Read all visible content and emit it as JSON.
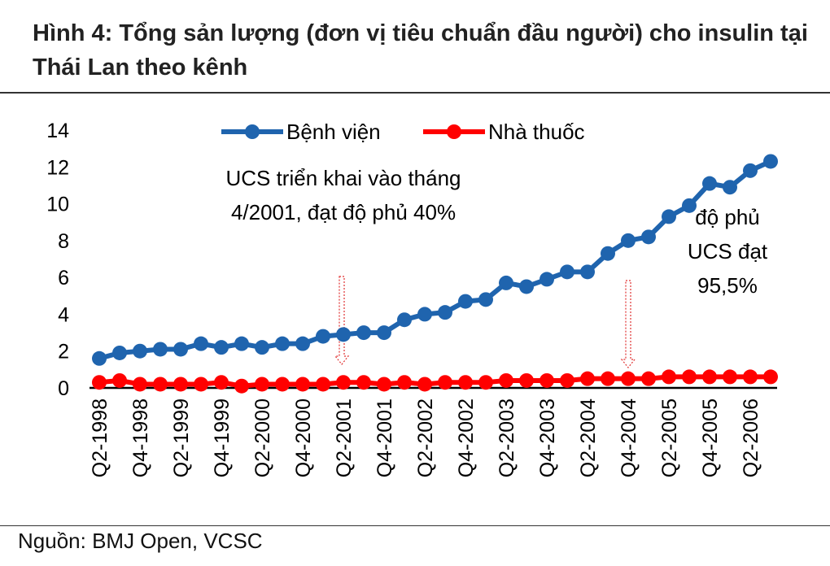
{
  "title": "Hình 4: Tổng sản lượng (đơn vị tiêu chuẩn đầu người) cho insulin tại Thái Lan theo kênh",
  "source": "Nguồn: BMJ Open, VCSC",
  "colors": {
    "hospital": "#1F64AE",
    "pharmacy": "#FF0000"
  },
  "chart_data": {
    "type": "line",
    "title": "Hình 4: Tổng sản lượng (đơn vị tiêu chuẩn đầu người) cho insulin tại Thái Lan theo kênh",
    "ylim": [
      0,
      14
    ],
    "yticks": [
      "0",
      "2",
      "4",
      "6",
      "8",
      "10",
      "12",
      "14"
    ],
    "xtick_labels": [
      "Q2-1998",
      "Q4-1998",
      "Q2-1999",
      "Q4-1999",
      "Q2-2000",
      "Q4-2000",
      "Q2-2001",
      "Q4-2001",
      "Q2-2002",
      "Q4-2002",
      "Q2-2003",
      "Q4-2003",
      "Q2-2004",
      "Q4-2004",
      "Q2-2005",
      "Q4-2005",
      "Q2-2006"
    ],
    "x": [
      "Q2-1998",
      "Q3-1998",
      "Q4-1998",
      "Q1-1999",
      "Q2-1999",
      "Q3-1999",
      "Q4-1999",
      "Q1-2000",
      "Q2-2000",
      "Q3-2000",
      "Q4-2000",
      "Q1-2001",
      "Q2-2001",
      "Q3-2001",
      "Q4-2001",
      "Q1-2002",
      "Q2-2002",
      "Q3-2002",
      "Q4-2002",
      "Q1-2003",
      "Q2-2003",
      "Q3-2003",
      "Q4-2003",
      "Q1-2004",
      "Q2-2004",
      "Q3-2004",
      "Q4-2004",
      "Q1-2005",
      "Q2-2005",
      "Q3-2005",
      "Q4-2005",
      "Q1-2006",
      "Q2-2006",
      "Q3-2006"
    ],
    "series": [
      {
        "name": "Bệnh viện",
        "values": [
          1.6,
          1.9,
          2.0,
          2.1,
          2.1,
          2.4,
          2.2,
          2.4,
          2.2,
          2.4,
          2.4,
          2.8,
          2.9,
          3.0,
          3.0,
          3.7,
          4.0,
          4.1,
          4.7,
          4.8,
          5.7,
          5.5,
          5.9,
          6.3,
          6.3,
          7.3,
          8.0,
          8.2,
          9.3,
          9.9,
          11.1,
          10.9,
          11.8,
          12.3
        ]
      },
      {
        "name": "Nhà thuốc",
        "values": [
          0.3,
          0.4,
          0.2,
          0.2,
          0.2,
          0.2,
          0.3,
          0.1,
          0.2,
          0.2,
          0.2,
          0.2,
          0.3,
          0.3,
          0.2,
          0.3,
          0.2,
          0.3,
          0.3,
          0.3,
          0.4,
          0.4,
          0.4,
          0.4,
          0.5,
          0.5,
          0.5,
          0.5,
          0.6,
          0.6,
          0.6,
          0.6,
          0.6,
          0.6
        ]
      }
    ],
    "legend": "top-center",
    "annotations": [
      {
        "text_lines": [
          "UCS triển khai vào tháng",
          "4/2001, đạt độ phủ 40%"
        ],
        "at": "Q2-2001"
      },
      {
        "text_lines": [
          "độ phủ",
          "UCS đạt",
          "95,5%"
        ],
        "at": "Q4-2004"
      }
    ]
  }
}
